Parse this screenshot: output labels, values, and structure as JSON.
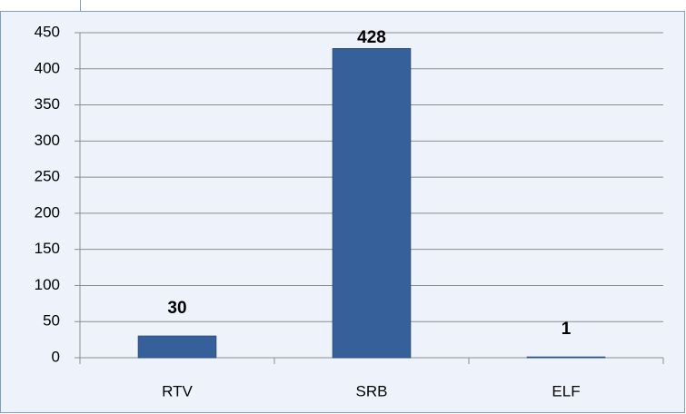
{
  "chart_data": {
    "type": "bar",
    "categories": [
      "RTV",
      "SRB",
      "ELF"
    ],
    "values": [
      30,
      428,
      1
    ],
    "color": "#36609a",
    "ylim": [
      0,
      450
    ],
    "yticks": [
      0,
      50,
      100,
      150,
      200,
      250,
      300,
      350,
      400,
      450
    ],
    "grid": true
  }
}
